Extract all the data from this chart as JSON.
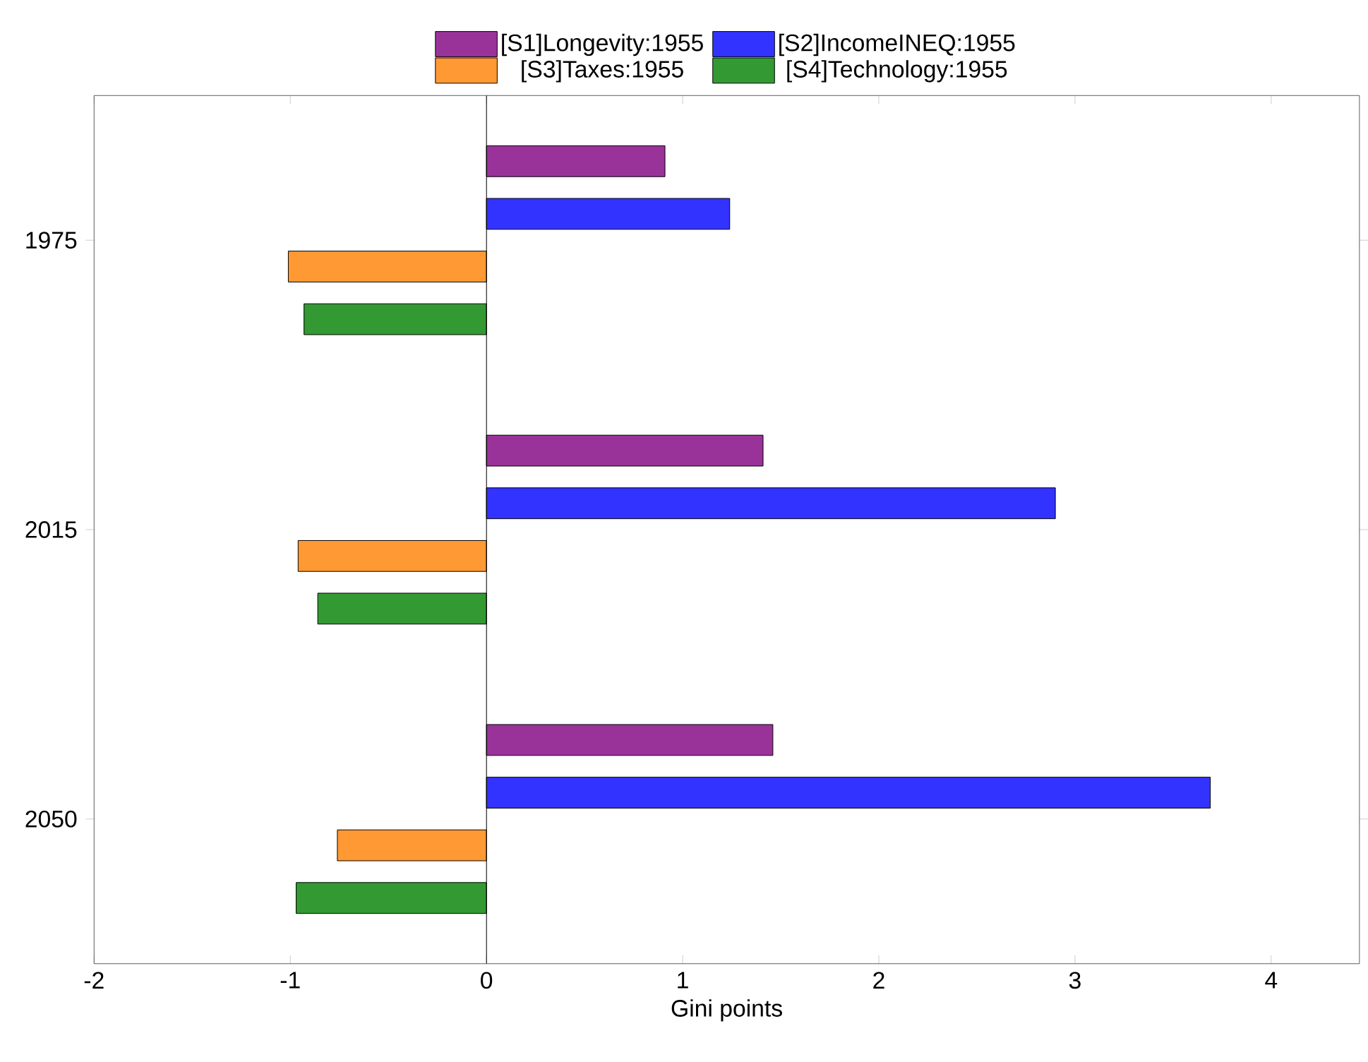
{
  "chart_data": {
    "type": "bar",
    "orientation": "horizontal",
    "xlabel": "Gini points",
    "categories": [
      "1975",
      "2015",
      "2050"
    ],
    "series": [
      {
        "name": "[S1]Longevity:1955",
        "color": "#993399",
        "values": [
          0.91,
          1.41,
          1.46
        ]
      },
      {
        "name": "[S2]IncomeINEQ:1955",
        "color": "#3333ff",
        "values": [
          1.24,
          2.9,
          3.69
        ]
      },
      {
        "name": "[S3]Taxes:1955",
        "color": "#ff9933",
        "values": [
          -1.01,
          -0.96,
          -0.76
        ]
      },
      {
        "name": "[S4]Technology:1955",
        "color": "#339933",
        "values": [
          -0.93,
          -0.86,
          -0.97
        ]
      }
    ],
    "xlim": [
      -2,
      4.45
    ],
    "xticks": [
      -2,
      -1,
      0,
      1,
      2,
      3,
      4
    ],
    "ref_lines": [
      {
        "axis": "x",
        "value": 0,
        "color": "#000000"
      }
    ],
    "legend": "top"
  }
}
